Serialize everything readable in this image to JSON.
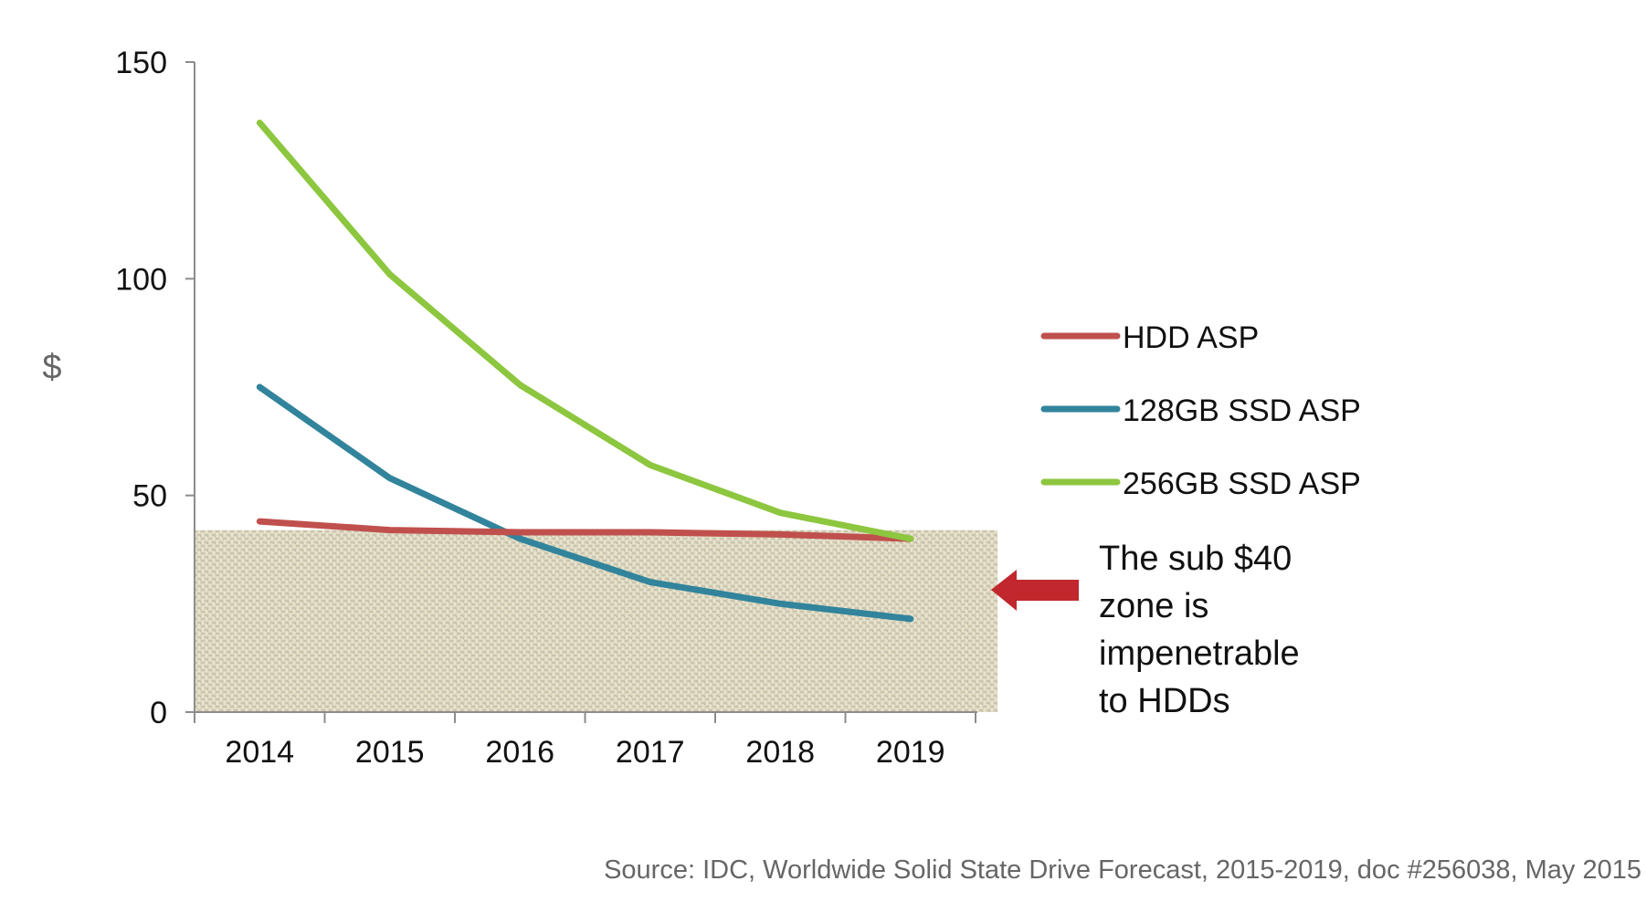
{
  "chart_data": {
    "type": "line",
    "title": "",
    "xlabel": "",
    "ylabel": "$",
    "categories": [
      "2014",
      "2015",
      "2016",
      "2017",
      "2018",
      "2019"
    ],
    "ylim": [
      0,
      150
    ],
    "yticks": [
      0,
      50,
      100,
      150
    ],
    "grid": false,
    "legend_position": "right",
    "series": [
      {
        "name": "HDD ASP",
        "color": "#c0504d",
        "values": [
          44,
          42,
          41.5,
          41.5,
          41,
          40
        ]
      },
      {
        "name": "128GB SSD ASP",
        "color": "#31849b",
        "values": [
          75,
          54,
          40,
          30,
          25,
          21.5
        ]
      },
      {
        "name": "256GB SSD ASP",
        "color": "#8dc63f",
        "values": [
          136,
          101,
          75.5,
          57,
          46,
          40
        ]
      }
    ],
    "shaded_zone": {
      "from": 0,
      "to": 42
    },
    "annotation": {
      "lines": [
        "The sub $40",
        "zone is",
        "impenetrable",
        "to HDDs"
      ],
      "arrow_color": "#c0282d"
    },
    "source": "Source: IDC, Worldwide Solid State Drive Forecast, 2015-2019, doc #256038, May 2015"
  }
}
